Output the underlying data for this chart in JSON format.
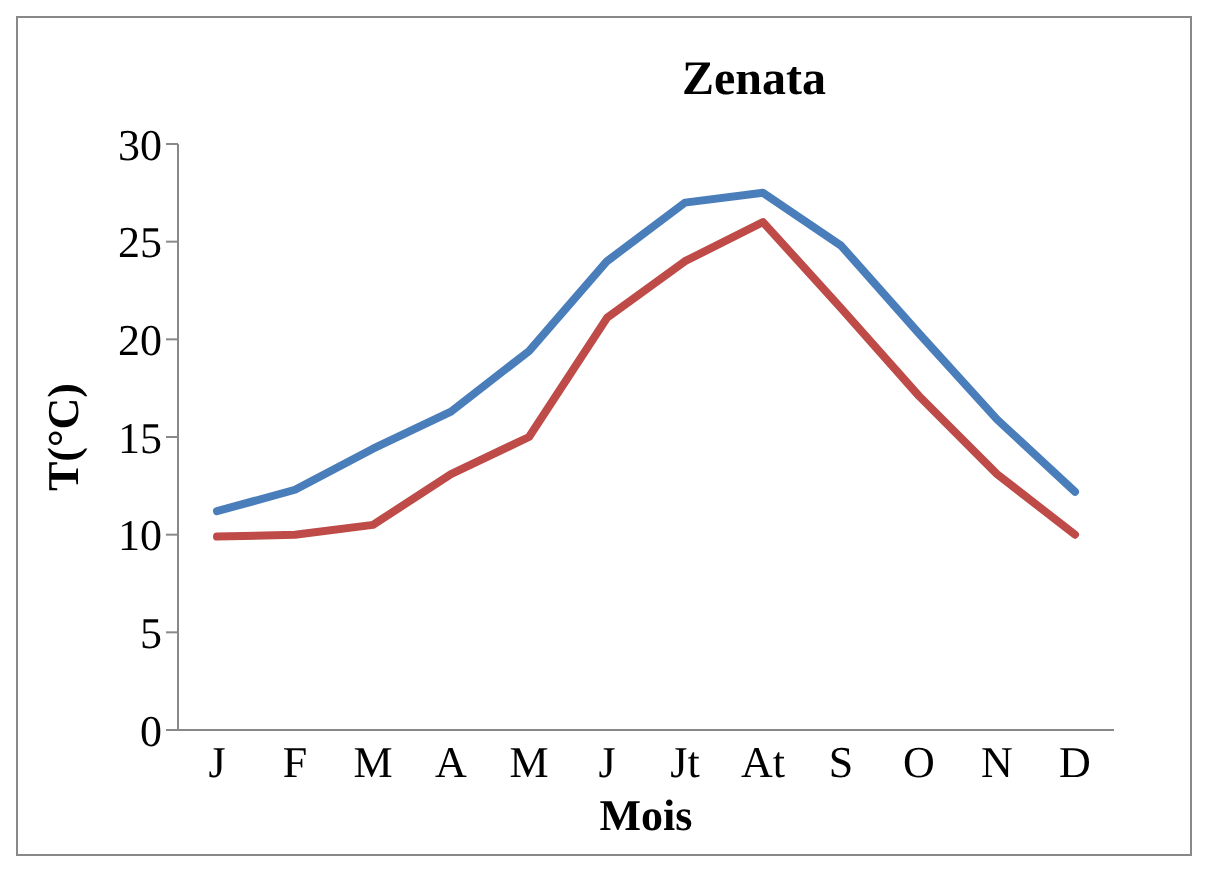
{
  "chart_data": {
    "type": "line",
    "title": "Zenata",
    "xlabel": "Mois",
    "ylabel": "T(°C)",
    "categories": [
      "J",
      "F",
      "M",
      "A",
      "M",
      "J",
      "Jt",
      "At",
      "S",
      "O",
      "N",
      "D"
    ],
    "series": [
      {
        "color": "#4a7ebb",
        "values": [
          11.2,
          12.3,
          14.4,
          16.3,
          19.4,
          24.0,
          27.0,
          27.5,
          24.8,
          20.3,
          15.9,
          12.2
        ]
      },
      {
        "color": "#be4b48",
        "values": [
          9.9,
          10.0,
          10.5,
          13.1,
          15.0,
          21.1,
          24.0,
          26.0,
          21.6,
          17.1,
          13.1,
          10.0
        ]
      }
    ],
    "ylim": [
      0,
      30
    ],
    "yticks": [
      0,
      5,
      10,
      15,
      20,
      25,
      30
    ],
    "grid": false,
    "legend": false,
    "marker": "none",
    "line_style": "solid"
  }
}
